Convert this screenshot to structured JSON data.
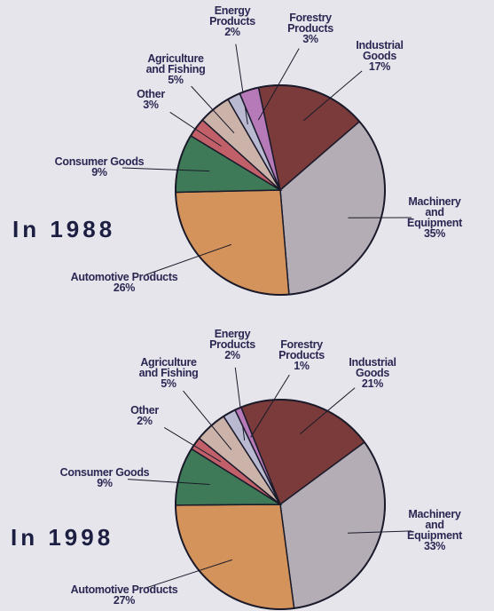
{
  "chart_data": [
    {
      "type": "pie",
      "title": "In 1988",
      "categories": [
        "Industrial\nGoods",
        "Machinery and\nEquipment",
        "Automotive Products",
        "Consumer Goods",
        "Other",
        "Agriculture\nand Fishing",
        "Energy\nProducts",
        "Forestry\nProducts"
      ],
      "values": [
        17,
        35,
        26,
        9,
        3,
        5,
        2,
        3
      ],
      "value_labels": [
        "17%",
        "35%",
        "26%",
        "9%",
        "3%",
        "5%",
        "2%",
        "3%"
      ],
      "colors": [
        "#7a3b3a",
        "#b4adb6",
        "#d4935a",
        "#3f7a58",
        "#c2606a",
        "#cbb3aa",
        "#b9b9d2",
        "#b67ab9"
      ]
    },
    {
      "type": "pie",
      "title": "In 1998",
      "categories": [
        "Industrial\nGoods",
        "Machinery and\nEquipment",
        "Automotive Products",
        "Consumer Goods",
        "Other",
        "Agriculture\nand Fishing",
        "Energy\nProducts",
        "Forestry\nProducts"
      ],
      "values": [
        21,
        33,
        27,
        9,
        2,
        5,
        2,
        1
      ],
      "value_labels": [
        "21%",
        "33%",
        "27%",
        "9%",
        "2%",
        "5%",
        "2%",
        "1%"
      ],
      "colors": [
        "#7a3b3a",
        "#b4adb6",
        "#d4935a",
        "#3f7a58",
        "#c2606a",
        "#cbb3aa",
        "#b9b9d2",
        "#b67ab9"
      ]
    }
  ]
}
